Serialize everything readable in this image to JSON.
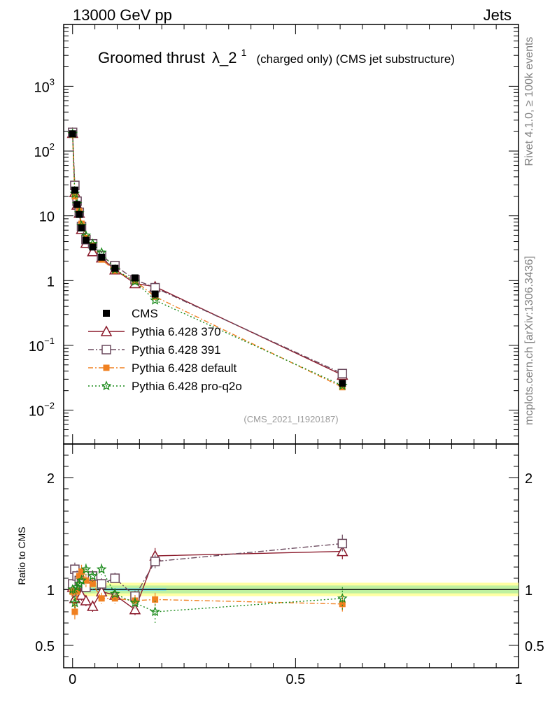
{
  "header": {
    "energy_label": "13000 GeV pp",
    "process_label": "Jets"
  },
  "side_labels": {
    "rivet": "Rivet 4.1.0, ≥ 100k events",
    "mcplots": "mcplots.cern.ch [arXiv:1306.3436]"
  },
  "chart_data": {
    "type": "line",
    "title_main": "Groomed thrust",
    "title_symbol": "λ_2",
    "title_sup": "1",
    "title_sub": "(charged only) (CMS jet substructure)",
    "analysis_id": "(CMS_2021_I1920187)",
    "xlim": [
      -0.02,
      1.0
    ],
    "ylim_log": [
      0.003,
      9000
    ],
    "ratio_label": "Ratio to CMS",
    "ratio_ylim": [
      0.3,
      2.3
    ],
    "main_y_ticks": [
      {
        "v": 0.01,
        "base": "10",
        "exp": "−2"
      },
      {
        "v": 0.1,
        "base": "10",
        "exp": "−1"
      },
      {
        "v": 1,
        "base": "1",
        "exp": ""
      },
      {
        "v": 10,
        "base": "10",
        "exp": ""
      },
      {
        "v": 100,
        "base": "10",
        "exp": "2"
      },
      {
        "v": 1000,
        "base": "10",
        "exp": "3"
      }
    ],
    "ratio_y_ticks": [
      {
        "v": 0.5,
        "label": "0.5"
      },
      {
        "v": 1,
        "label": "1"
      },
      {
        "v": 2,
        "label": "2"
      }
    ],
    "x_ticks": [
      {
        "v": 0,
        "label": "0"
      },
      {
        "v": 0.5,
        "label": "0.5"
      },
      {
        "v": 1,
        "label": "1"
      }
    ],
    "x": [
      0.0,
      0.005,
      0.01,
      0.015,
      0.02,
      0.03,
      0.045,
      0.065,
      0.095,
      0.14,
      0.185,
      0.605
    ],
    "data": {
      "name": "CMS",
      "values": [
        185,
        25,
        15,
        10.5,
        6.5,
        4.2,
        3.3,
        2.3,
        1.55,
        1.1,
        0.62,
        0.026
      ],
      "rel_err": [
        0.02,
        0.02,
        0.02,
        0.02,
        0.02,
        0.02,
        0.03,
        0.03,
        0.03,
        0.04,
        0.05,
        0.06
      ]
    },
    "series": [
      {
        "name": "Pythia 6.428 370",
        "color": "#8b1a2b",
        "dash": "",
        "marker": "triangle",
        "ratios": [
          1.02,
          0.92,
          0.98,
          1.05,
          0.95,
          0.9,
          0.85,
          0.98,
          0.95,
          0.82,
          1.3,
          1.34
        ],
        "errs": [
          0.05,
          0.05,
          0.05,
          0.05,
          0.05,
          0.05,
          0.05,
          0.05,
          0.05,
          0.05,
          0.07,
          0.07
        ]
      },
      {
        "name": "Pythia 6.428 391",
        "color": "#6b4a5e",
        "dash": "8,3,2,3",
        "marker": "square",
        "ratios": [
          1.05,
          1.18,
          1.12,
          1.08,
          1.05,
          1.02,
          1.12,
          1.05,
          1.1,
          0.94,
          1.25,
          1.41
        ],
        "errs": [
          0.04,
          0.06,
          0.05,
          0.05,
          0.05,
          0.05,
          0.05,
          0.05,
          0.05,
          0.05,
          0.06,
          0.08
        ]
      },
      {
        "name": "Pythia 6.428 default",
        "color": "#f08020",
        "dash": "7,3,2,3",
        "marker": "filled-square",
        "ratios": [
          0.98,
          0.8,
          0.98,
          1.12,
          1.16,
          1.08,
          1.05,
          0.92,
          0.92,
          0.9,
          0.91,
          0.87
        ],
        "errs": [
          0.04,
          0.07,
          0.06,
          0.06,
          0.06,
          0.06,
          0.05,
          0.05,
          0.05,
          0.05,
          0.06,
          0.07
        ]
      },
      {
        "name": "Pythia 6.428 pro-q2o",
        "color": "#1a8a1a",
        "dash": "2,3",
        "marker": "star",
        "ratios": [
          1.0,
          0.88,
          1.02,
          1.05,
          1.08,
          1.18,
          1.12,
          1.18,
          0.96,
          0.88,
          0.8,
          0.92
        ],
        "errs": [
          0.04,
          0.06,
          0.05,
          0.05,
          0.05,
          0.05,
          0.05,
          0.05,
          0.05,
          0.05,
          0.1,
          0.1
        ]
      }
    ]
  }
}
